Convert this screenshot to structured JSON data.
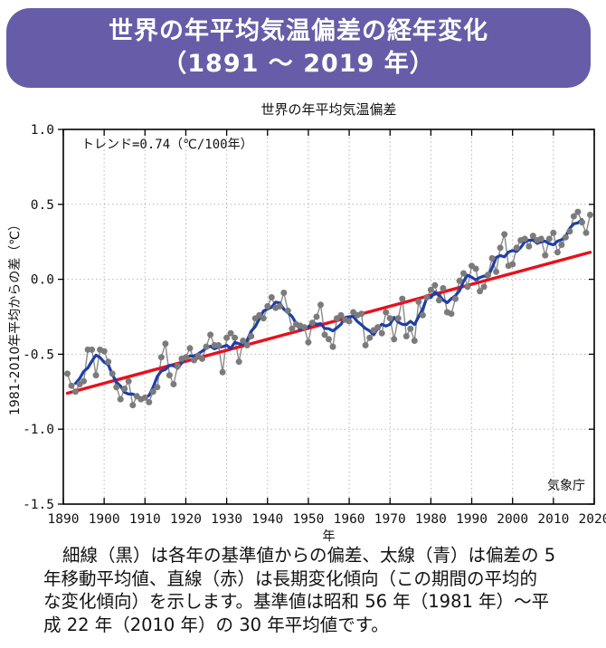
{
  "header": {
    "line1": "世界の年平均気温偏差の経年変化",
    "line2": "（1891 ～ 2019 年）",
    "bg_color": "#675CA8",
    "text_color": "#ffffff"
  },
  "chart_data": {
    "type": "line",
    "title": "世界の年平均気温偏差",
    "xlabel": "年",
    "ylabel": "1981-2010年平均からの差（℃）",
    "annotation": "トレンド=0.74（℃/100年）",
    "source_label": "気象庁",
    "xlim": [
      1890,
      2020
    ],
    "ylim": [
      -1.5,
      1.0
    ],
    "x_ticks": [
      1890,
      1900,
      1910,
      1920,
      1930,
      1940,
      1950,
      1960,
      1970,
      1980,
      1990,
      2000,
      2010,
      2020
    ],
    "y_ticks": [
      1.0,
      0.5,
      0.0,
      -0.5,
      -1.0,
      -1.5
    ],
    "grid": "dotted gridlines at decade verticals and 0.5-step horizontals",
    "legend_position": "none",
    "colors": {
      "annual_dots": "#7b7b7b",
      "annual_line": "#8a8a8a",
      "moving_average": "#1e3fa6",
      "trend": "#e8101e",
      "gridline": "#bdb6ae",
      "frame": "#000000"
    },
    "series": [
      {
        "name": "各年の基準値からの偏差（細線・黒、灰色の点）",
        "type": "line+markers",
        "x_start": 1891,
        "x_end": 2019,
        "values": [
          -0.63,
          -0.71,
          -0.75,
          -0.7,
          -0.68,
          -0.47,
          -0.47,
          -0.64,
          -0.47,
          -0.48,
          -0.55,
          -0.63,
          -0.72,
          -0.8,
          -0.73,
          -0.68,
          -0.84,
          -0.78,
          -0.8,
          -0.79,
          -0.82,
          -0.75,
          -0.72,
          -0.52,
          -0.43,
          -0.64,
          -0.7,
          -0.58,
          -0.53,
          -0.52,
          -0.46,
          -0.54,
          -0.51,
          -0.53,
          -0.45,
          -0.37,
          -0.44,
          -0.44,
          -0.62,
          -0.39,
          -0.36,
          -0.39,
          -0.55,
          -0.41,
          -0.44,
          -0.38,
          -0.26,
          -0.24,
          -0.26,
          -0.18,
          -0.12,
          -0.19,
          -0.18,
          -0.09,
          -0.21,
          -0.33,
          -0.3,
          -0.31,
          -0.32,
          -0.42,
          -0.29,
          -0.25,
          -0.17,
          -0.37,
          -0.4,
          -0.45,
          -0.26,
          -0.24,
          -0.27,
          -0.28,
          -0.22,
          -0.24,
          -0.23,
          -0.44,
          -0.39,
          -0.34,
          -0.32,
          -0.36,
          -0.22,
          -0.26,
          -0.4,
          -0.26,
          -0.13,
          -0.38,
          -0.33,
          -0.41,
          -0.15,
          -0.24,
          -0.12,
          -0.07,
          -0.04,
          -0.14,
          -0.06,
          -0.22,
          -0.23,
          -0.13,
          -0.01,
          0.04,
          -0.05,
          0.09,
          0.07,
          -0.08,
          -0.05,
          0.03,
          0.14,
          0.05,
          0.21,
          0.3,
          0.09,
          0.1,
          0.21,
          0.26,
          0.27,
          0.22,
          0.29,
          0.26,
          0.27,
          0.16,
          0.27,
          0.31,
          0.18,
          0.23,
          0.28,
          0.32,
          0.42,
          0.45,
          0.38,
          0.31,
          0.43
        ]
      },
      {
        "name": "偏差の5年移動平均値（太線・青）",
        "type": "derived",
        "derived": "5-year centered moving average of annual values"
      },
      {
        "name": "長期変化傾向（直線・赤）",
        "type": "line",
        "x": [
          1891,
          2019
        ],
        "values": [
          -0.76,
          0.18
        ],
        "trend_per_100yr": 0.74
      }
    ]
  },
  "caption": {
    "lines": [
      "細線（黒）は各年の基準値からの偏差、太線（青）は偏差の 5",
      "年移動平均値、直線（赤）は長期変化傾向（この期間の平均的",
      "な変化傾向）を示します。基準値は昭和 56 年（1981 年）～平",
      "成 22 年（2010 年）の 30 年平均値です。"
    ]
  }
}
